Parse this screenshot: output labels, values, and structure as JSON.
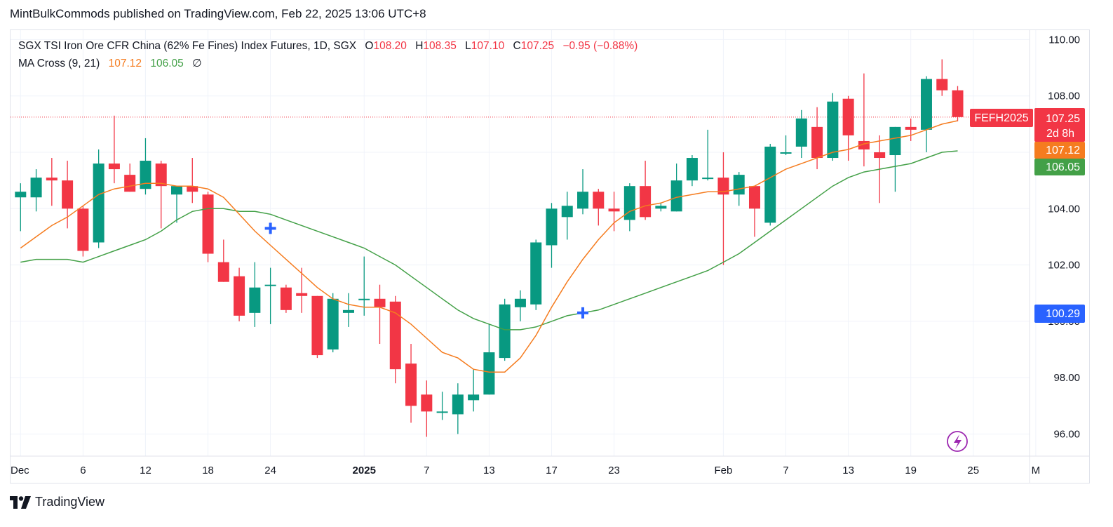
{
  "publisher_line": "MintBulkCommods published on TradingView.com, Feb 22, 2025 13:06 UTC+8",
  "legend": {
    "title": "SGX TSI Iron Ore CFR China (62% Fe Fines) Index Futures, 1D, SGX",
    "o_label": "O",
    "o_value": "108.20",
    "h_label": "H",
    "h_value": "108.35",
    "l_label": "L",
    "l_value": "107.10",
    "c_label": "C",
    "c_value": "107.25",
    "change": "−0.95 (−0.88%)",
    "indicator_name": "MA Cross (9, 21)",
    "ma_fast_value": "107.12",
    "ma_slow_value": "106.05",
    "indicator_hidden_symbol": "∅"
  },
  "brand": {
    "logo_text": "17",
    "name": "TradingView"
  },
  "colors": {
    "up": "#089981",
    "down": "#f23645",
    "ma_fast": "#f57c1f",
    "ma_slow": "#43a047",
    "cross": "#2962ff",
    "price_line": "#f23645",
    "grid": "#f0f3fa",
    "tag_blue": "#2962ff",
    "flash": "#9c27b0"
  },
  "chart_data": {
    "type": "candlestick",
    "symbol_label": "FEFH2025",
    "last_price_label": "107.25",
    "countdown_label": "2d 8h",
    "ma_fast_label": "107.12",
    "ma_slow_label": "106.05",
    "crosshair_label": "100.29",
    "ylim": [
      95,
      110.3
    ],
    "y_ticks": [
      "96.00",
      "98.00",
      "100.00",
      "102.00",
      "104.00",
      "108.00",
      "110.00"
    ],
    "x_ticks": [
      {
        "i": 0,
        "label": "Dec",
        "bold": false
      },
      {
        "i": 4,
        "label": "6",
        "bold": false
      },
      {
        "i": 8,
        "label": "12",
        "bold": false
      },
      {
        "i": 12,
        "label": "18",
        "bold": false
      },
      {
        "i": 16,
        "label": "24",
        "bold": false
      },
      {
        "i": 22,
        "label": "2025",
        "bold": true
      },
      {
        "i": 26,
        "label": "7",
        "bold": false
      },
      {
        "i": 30,
        "label": "13",
        "bold": false
      },
      {
        "i": 34,
        "label": "17",
        "bold": false
      },
      {
        "i": 38,
        "label": "23",
        "bold": false
      },
      {
        "i": 45,
        "label": "Feb",
        "bold": false
      },
      {
        "i": 49,
        "label": "7",
        "bold": false
      },
      {
        "i": 53,
        "label": "13",
        "bold": false
      },
      {
        "i": 57,
        "label": "19",
        "bold": false
      },
      {
        "i": 61,
        "label": "25",
        "bold": false
      },
      {
        "i": 65,
        "label": "M",
        "bold": false
      }
    ],
    "candles": [
      {
        "o": 104.4,
        "h": 104.9,
        "l": 103.2,
        "c": 104.6
      },
      {
        "o": 104.4,
        "h": 105.4,
        "l": 103.9,
        "c": 105.1
      },
      {
        "o": 105.1,
        "h": 105.8,
        "l": 104.1,
        "c": 105.0
      },
      {
        "o": 105.0,
        "h": 105.7,
        "l": 103.3,
        "c": 104.0
      },
      {
        "o": 104.0,
        "h": 104.1,
        "l": 102.3,
        "c": 102.5
      },
      {
        "o": 102.8,
        "h": 106.1,
        "l": 102.6,
        "c": 105.6
      },
      {
        "o": 105.6,
        "h": 107.3,
        "l": 104.9,
        "c": 105.4
      },
      {
        "o": 105.2,
        "h": 105.6,
        "l": 104.6,
        "c": 104.6
      },
      {
        "o": 104.7,
        "h": 106.5,
        "l": 104.5,
        "c": 105.7
      },
      {
        "o": 105.6,
        "h": 105.7,
        "l": 103.3,
        "c": 104.8
      },
      {
        "o": 104.5,
        "h": 104.8,
        "l": 103.5,
        "c": 104.8
      },
      {
        "o": 104.8,
        "h": 105.8,
        "l": 104.2,
        "c": 104.6
      },
      {
        "o": 104.5,
        "h": 104.6,
        "l": 102.1,
        "c": 102.4
      },
      {
        "o": 102.1,
        "h": 102.9,
        "l": 101.4,
        "c": 101.4
      },
      {
        "o": 101.6,
        "h": 101.9,
        "l": 100.0,
        "c": 100.2
      },
      {
        "o": 100.3,
        "h": 102.1,
        "l": 99.8,
        "c": 101.2
      },
      {
        "o": 101.3,
        "h": 101.9,
        "l": 99.9,
        "c": 101.3
      },
      {
        "o": 101.2,
        "h": 101.3,
        "l": 100.3,
        "c": 100.4
      },
      {
        "o": 101.0,
        "h": 101.9,
        "l": 100.3,
        "c": 100.9
      },
      {
        "o": 100.9,
        "h": 100.9,
        "l": 98.7,
        "c": 98.8
      },
      {
        "o": 99.0,
        "h": 101.0,
        "l": 98.9,
        "c": 100.8
      },
      {
        "o": 100.3,
        "h": 101.0,
        "l": 99.8,
        "c": 100.4
      },
      {
        "o": 100.8,
        "h": 102.3,
        "l": 100.2,
        "c": 100.8
      },
      {
        "o": 100.8,
        "h": 101.3,
        "l": 99.2,
        "c": 100.5
      },
      {
        "o": 100.7,
        "h": 100.9,
        "l": 97.8,
        "c": 98.3
      },
      {
        "o": 98.5,
        "h": 99.2,
        "l": 96.4,
        "c": 97.0
      },
      {
        "o": 97.4,
        "h": 97.9,
        "l": 95.9,
        "c": 96.8
      },
      {
        "o": 96.8,
        "h": 97.5,
        "l": 96.5,
        "c": 96.8
      },
      {
        "o": 96.7,
        "h": 97.8,
        "l": 96.0,
        "c": 97.4
      },
      {
        "o": 97.2,
        "h": 98.3,
        "l": 96.8,
        "c": 97.4
      },
      {
        "o": 97.4,
        "h": 99.9,
        "l": 97.4,
        "c": 98.9
      },
      {
        "o": 98.7,
        "h": 100.8,
        "l": 98.6,
        "c": 100.6
      },
      {
        "o": 100.5,
        "h": 101.1,
        "l": 100.0,
        "c": 100.8
      },
      {
        "o": 100.6,
        "h": 102.9,
        "l": 100.4,
        "c": 102.8
      },
      {
        "o": 102.7,
        "h": 104.2,
        "l": 101.9,
        "c": 104.0
      },
      {
        "o": 103.7,
        "h": 104.6,
        "l": 102.9,
        "c": 104.1
      },
      {
        "o": 104.0,
        "h": 105.4,
        "l": 103.8,
        "c": 104.6
      },
      {
        "o": 104.6,
        "h": 104.7,
        "l": 103.4,
        "c": 104.0
      },
      {
        "o": 104.0,
        "h": 104.6,
        "l": 103.2,
        "c": 103.9
      },
      {
        "o": 103.6,
        "h": 104.9,
        "l": 103.2,
        "c": 104.8
      },
      {
        "o": 104.8,
        "h": 105.7,
        "l": 103.6,
        "c": 103.7
      },
      {
        "o": 104.0,
        "h": 104.2,
        "l": 103.9,
        "c": 104.1
      },
      {
        "o": 103.9,
        "h": 105.6,
        "l": 103.9,
        "c": 105.0
      },
      {
        "o": 105.0,
        "h": 105.9,
        "l": 104.8,
        "c": 105.8
      },
      {
        "o": 105.1,
        "h": 106.8,
        "l": 105.0,
        "c": 105.1
      },
      {
        "o": 105.1,
        "h": 106.0,
        "l": 102.0,
        "c": 104.5
      },
      {
        "o": 104.5,
        "h": 105.3,
        "l": 104.1,
        "c": 105.2
      },
      {
        "o": 104.8,
        "h": 104.8,
        "l": 103.0,
        "c": 104.0
      },
      {
        "o": 103.5,
        "h": 106.3,
        "l": 103.4,
        "c": 106.2
      },
      {
        "o": 106.0,
        "h": 106.6,
        "l": 105.9,
        "c": 106.0
      },
      {
        "o": 106.2,
        "h": 107.5,
        "l": 105.8,
        "c": 107.2
      },
      {
        "o": 106.9,
        "h": 107.6,
        "l": 105.4,
        "c": 105.8
      },
      {
        "o": 105.8,
        "h": 108.1,
        "l": 105.7,
        "c": 107.8
      },
      {
        "o": 107.9,
        "h": 108.0,
        "l": 105.7,
        "c": 106.6
      },
      {
        "o": 106.4,
        "h": 108.8,
        "l": 105.5,
        "c": 106.1
      },
      {
        "o": 106.0,
        "h": 106.6,
        "l": 104.2,
        "c": 105.8
      },
      {
        "o": 105.9,
        "h": 106.9,
        "l": 104.6,
        "c": 106.9
      },
      {
        "o": 106.9,
        "h": 107.2,
        "l": 106.4,
        "c": 106.8
      },
      {
        "o": 106.8,
        "h": 108.7,
        "l": 106.0,
        "c": 108.6
      },
      {
        "o": 108.6,
        "h": 109.3,
        "l": 108.0,
        "c": 108.2
      },
      {
        "o": 108.2,
        "h": 108.35,
        "l": 107.1,
        "c": 107.25
      }
    ],
    "ma_fast": [
      102.6,
      103.0,
      103.4,
      103.7,
      104.1,
      104.5,
      104.7,
      104.8,
      104.9,
      104.9,
      104.8,
      104.8,
      104.7,
      104.4,
      103.8,
      103.2,
      102.7,
      102.2,
      101.7,
      101.2,
      100.8,
      100.6,
      100.5,
      100.5,
      100.3,
      99.9,
      99.4,
      98.9,
      98.7,
      98.3,
      98.2,
      98.2,
      98.7,
      99.5,
      100.5,
      101.4,
      102.2,
      102.9,
      103.5,
      103.9,
      104.1,
      104.2,
      104.4,
      104.5,
      104.6,
      104.6,
      104.7,
      104.8,
      105.1,
      105.4,
      105.6,
      105.8,
      106.0,
      106.1,
      106.3,
      106.4,
      106.5,
      106.6,
      106.8,
      107.0,
      107.12
    ],
    "ma_slow": [
      102.1,
      102.2,
      102.2,
      102.2,
      102.1,
      102.3,
      102.5,
      102.7,
      102.9,
      103.2,
      103.6,
      103.9,
      104.0,
      104.0,
      103.9,
      103.9,
      103.8,
      103.6,
      103.4,
      103.2,
      103.0,
      102.8,
      102.6,
      102.3,
      102.0,
      101.6,
      101.2,
      100.8,
      100.4,
      100.1,
      99.9,
      99.7,
      99.7,
      99.8,
      100.0,
      100.2,
      100.3,
      100.4,
      100.6,
      100.8,
      101.0,
      101.2,
      101.4,
      101.6,
      101.8,
      102.1,
      102.4,
      102.8,
      103.2,
      103.6,
      104.0,
      104.4,
      104.8,
      105.1,
      105.3,
      105.4,
      105.5,
      105.6,
      105.8,
      106.0,
      106.05
    ],
    "cross_points": [
      {
        "i": 16,
        "y": 103.3
      },
      {
        "i": 36,
        "y": 100.3
      }
    ]
  }
}
